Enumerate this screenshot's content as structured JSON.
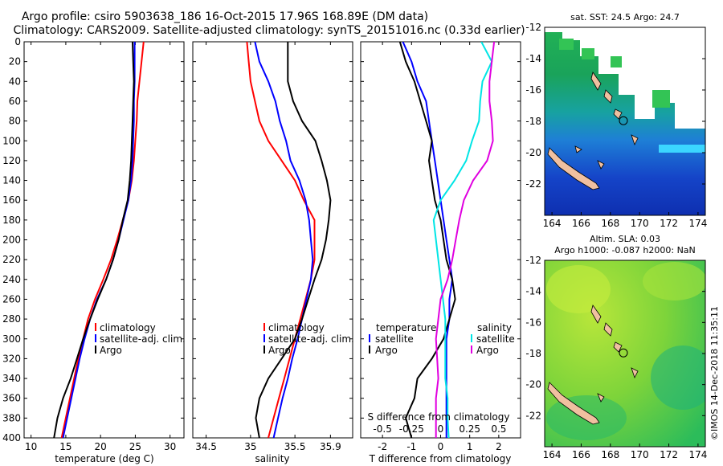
{
  "title": {
    "line1": "Argo profile: csiro 5903638_186 16-Oct-2015 17.96S 168.89E (DM data)",
    "line2": "Climatology: CARS2009. Satellite-adjusted climatology: synTS_20151016.nc (0.33d earlier)"
  },
  "watermark": "©IMOS 14-Dec-2018 11:35:11",
  "colors": {
    "climatology": "#ff0000",
    "satellite": "#0000ff",
    "argo": "#000000",
    "salinity_sat": "#00e5e5",
    "salinity_clim": "#e000e0"
  },
  "chart_data": [
    {
      "id": "temperature",
      "type": "line",
      "xlabel": "temperature (deg C)",
      "ylabel": "",
      "xlim": [
        9,
        32
      ],
      "ylim": [
        400,
        0
      ],
      "x_ticks": [
        "10",
        "15",
        "20",
        "25",
        "30"
      ],
      "y_ticks": [
        "0",
        "20",
        "40",
        "60",
        "80",
        "100",
        "120",
        "140",
        "160",
        "180",
        "200",
        "220",
        "240",
        "260",
        "280",
        "300",
        "320",
        "340",
        "360",
        "380",
        "400"
      ],
      "legend": {
        "position": "lower-right",
        "entries": [
          "climatology",
          "satellite-adj. clim.",
          "Argo"
        ]
      },
      "series": [
        {
          "name": "climatology",
          "color": "#ff0000",
          "points": [
            [
              26.2,
              0
            ],
            [
              25.9,
              20
            ],
            [
              25.6,
              40
            ],
            [
              25.3,
              60
            ],
            [
              25.2,
              80
            ],
            [
              25.0,
              100
            ],
            [
              24.8,
              120
            ],
            [
              24.5,
              140
            ],
            [
              24.0,
              160
            ],
            [
              23.2,
              180
            ],
            [
              22.4,
              200
            ],
            [
              21.5,
              220
            ],
            [
              20.4,
              240
            ],
            [
              19.2,
              260
            ],
            [
              18.2,
              280
            ],
            [
              17.5,
              300
            ],
            [
              16.8,
              320
            ],
            [
              16.2,
              340
            ],
            [
              15.6,
              360
            ],
            [
              15.0,
              380
            ],
            [
              14.4,
              400
            ]
          ]
        },
        {
          "name": "satellite-adj. clim.",
          "color": "#0000ff",
          "points": [
            [
              24.9,
              0
            ],
            [
              24.9,
              20
            ],
            [
              24.9,
              40
            ],
            [
              24.8,
              60
            ],
            [
              24.8,
              80
            ],
            [
              24.7,
              100
            ],
            [
              24.6,
              120
            ],
            [
              24.4,
              140
            ],
            [
              24.0,
              160
            ],
            [
              23.3,
              180
            ],
            [
              22.6,
              200
            ],
            [
              21.8,
              220
            ],
            [
              20.8,
              240
            ],
            [
              19.5,
              260
            ],
            [
              18.5,
              280
            ],
            [
              17.7,
              300
            ],
            [
              17.0,
              320
            ],
            [
              16.4,
              340
            ],
            [
              15.8,
              360
            ],
            [
              15.2,
              380
            ],
            [
              14.6,
              400
            ]
          ]
        },
        {
          "name": "Argo",
          "color": "#000000",
          "points": [
            [
              24.6,
              0
            ],
            [
              24.7,
              20
            ],
            [
              24.8,
              40
            ],
            [
              24.7,
              60
            ],
            [
              24.6,
              80
            ],
            [
              24.5,
              100
            ],
            [
              24.4,
              120
            ],
            [
              24.2,
              140
            ],
            [
              23.9,
              160
            ],
            [
              23.2,
              180
            ],
            [
              22.6,
              200
            ],
            [
              21.8,
              220
            ],
            [
              20.8,
              240
            ],
            [
              19.6,
              260
            ],
            [
              18.5,
              280
            ],
            [
              17.5,
              300
            ],
            [
              16.6,
              320
            ],
            [
              15.7,
              340
            ],
            [
              14.6,
              360
            ],
            [
              13.8,
              380
            ],
            [
              13.3,
              400
            ]
          ]
        }
      ]
    },
    {
      "id": "salinity",
      "type": "line",
      "xlabel": "salinity",
      "ylabel": "",
      "xlim": [
        34.35,
        36.15
      ],
      "ylim": [
        400,
        0
      ],
      "x_ticks": [
        "34.5",
        "35",
        "35.5",
        "35.9"
      ],
      "legend": {
        "position": "lower-right",
        "entries": [
          "climatology",
          "satellite-adj. clim.",
          "Argo"
        ]
      },
      "series": [
        {
          "name": "climatology",
          "color": "#ff0000",
          "points": [
            [
              34.96,
              0
            ],
            [
              34.98,
              20
            ],
            [
              35.0,
              40
            ],
            [
              35.05,
              60
            ],
            [
              35.1,
              80
            ],
            [
              35.2,
              100
            ],
            [
              35.35,
              120
            ],
            [
              35.5,
              140
            ],
            [
              35.6,
              160
            ],
            [
              35.72,
              180
            ],
            [
              35.72,
              200
            ],
            [
              35.72,
              220
            ],
            [
              35.68,
              240
            ],
            [
              35.62,
              260
            ],
            [
              35.56,
              280
            ],
            [
              35.5,
              300
            ],
            [
              35.44,
              320
            ],
            [
              35.38,
              340
            ],
            [
              35.32,
              360
            ],
            [
              35.26,
              380
            ],
            [
              35.2,
              400
            ]
          ]
        },
        {
          "name": "satellite-adj. clim.",
          "color": "#0000ff",
          "points": [
            [
              35.05,
              0
            ],
            [
              35.1,
              20
            ],
            [
              35.2,
              40
            ],
            [
              35.28,
              60
            ],
            [
              35.33,
              80
            ],
            [
              35.4,
              100
            ],
            [
              35.45,
              120
            ],
            [
              35.55,
              140
            ],
            [
              35.62,
              160
            ],
            [
              35.66,
              180
            ],
            [
              35.68,
              200
            ],
            [
              35.7,
              220
            ],
            [
              35.68,
              240
            ],
            [
              35.63,
              260
            ],
            [
              35.58,
              280
            ],
            [
              35.53,
              300
            ],
            [
              35.47,
              320
            ],
            [
              35.42,
              340
            ],
            [
              35.36,
              360
            ],
            [
              35.31,
              380
            ],
            [
              35.26,
              400
            ]
          ]
        },
        {
          "name": "Argo",
          "color": "#000000",
          "points": [
            [
              35.42,
              0
            ],
            [
              35.42,
              20
            ],
            [
              35.42,
              40
            ],
            [
              35.48,
              60
            ],
            [
              35.58,
              80
            ],
            [
              35.73,
              100
            ],
            [
              35.8,
              120
            ],
            [
              35.86,
              140
            ],
            [
              35.9,
              160
            ],
            [
              35.88,
              180
            ],
            [
              35.85,
              200
            ],
            [
              35.8,
              220
            ],
            [
              35.72,
              240
            ],
            [
              35.65,
              260
            ],
            [
              35.58,
              280
            ],
            [
              35.5,
              300
            ],
            [
              35.35,
              320
            ],
            [
              35.2,
              340
            ],
            [
              35.1,
              360
            ],
            [
              35.06,
              380
            ],
            [
              35.1,
              400
            ]
          ]
        }
      ]
    },
    {
      "id": "differences",
      "type": "line",
      "xlabel": "T difference from climatology",
      "xlabel_top": "S difference from climatology",
      "ylabel": "",
      "xlim": [
        -2.75,
        2.75
      ],
      "s_xlim": [
        -0.6875,
        0.6875
      ],
      "ylim": [
        400,
        0
      ],
      "x_ticks": [
        "-2",
        "-1",
        "0",
        "1",
        "2"
      ],
      "s_x_ticks": [
        "-0.5",
        "-0.25",
        "0",
        "0.25",
        "0.5"
      ],
      "legend": {
        "position": "lower",
        "temperature_heading": "temperature",
        "salinity_heading": "salinity",
        "temperature_entries": [
          "satellite",
          "Argo"
        ],
        "salinity_entries": [
          "satellite",
          "Argo"
        ]
      },
      "series": [
        {
          "name": "T satellite",
          "color": "#0000ff",
          "points": [
            [
              -1.3,
              0
            ],
            [
              -1.0,
              20
            ],
            [
              -0.8,
              40
            ],
            [
              -0.5,
              60
            ],
            [
              -0.4,
              80
            ],
            [
              -0.3,
              100
            ],
            [
              -0.2,
              120
            ],
            [
              -0.1,
              140
            ],
            [
              0.0,
              160
            ],
            [
              0.1,
              180
            ],
            [
              0.2,
              200
            ],
            [
              0.3,
              220
            ],
            [
              0.4,
              240
            ],
            [
              0.3,
              260
            ],
            [
              0.3,
              280
            ],
            [
              0.2,
              300
            ],
            [
              0.2,
              320
            ],
            [
              0.2,
              340
            ],
            [
              0.2,
              360
            ],
            [
              0.2,
              380
            ],
            [
              0.2,
              400
            ]
          ]
        },
        {
          "name": "T Argo",
          "color": "#000000",
          "points": [
            [
              -1.4,
              0
            ],
            [
              -1.2,
              20
            ],
            [
              -0.9,
              40
            ],
            [
              -0.7,
              60
            ],
            [
              -0.5,
              80
            ],
            [
              -0.3,
              100
            ],
            [
              -0.4,
              120
            ],
            [
              -0.3,
              140
            ],
            [
              -0.2,
              160
            ],
            [
              0.0,
              180
            ],
            [
              0.1,
              200
            ],
            [
              0.2,
              220
            ],
            [
              0.4,
              240
            ],
            [
              0.5,
              260
            ],
            [
              0.3,
              280
            ],
            [
              0.1,
              300
            ],
            [
              -0.3,
              320
            ],
            [
              -0.8,
              340
            ],
            [
              -0.9,
              360
            ],
            [
              -1.2,
              380
            ],
            [
              -1.0,
              400
            ]
          ]
        },
        {
          "name": "S satellite",
          "color": "#00e5e5",
          "points": [
            [
              0.35,
              0
            ],
            [
              0.44,
              20
            ],
            [
              0.36,
              40
            ],
            [
              0.34,
              60
            ],
            [
              0.33,
              80
            ],
            [
              0.27,
              100
            ],
            [
              0.22,
              120
            ],
            [
              0.12,
              140
            ],
            [
              0.0,
              160
            ],
            [
              -0.06,
              180
            ],
            [
              -0.04,
              200
            ],
            [
              -0.02,
              220
            ],
            [
              0.0,
              240
            ],
            [
              0.02,
              260
            ],
            [
              0.04,
              280
            ],
            [
              0.04,
              300
            ],
            [
              0.04,
              320
            ],
            [
              0.04,
              340
            ],
            [
              0.06,
              360
            ],
            [
              0.06,
              380
            ],
            [
              0.07,
              400
            ]
          ]
        },
        {
          "name": "S Argo",
          "color": "#e000e0",
          "points": [
            [
              0.46,
              0
            ],
            [
              0.44,
              20
            ],
            [
              0.42,
              40
            ],
            [
              0.42,
              60
            ],
            [
              0.44,
              80
            ],
            [
              0.45,
              100
            ],
            [
              0.4,
              120
            ],
            [
              0.28,
              140
            ],
            [
              0.2,
              160
            ],
            [
              0.16,
              180
            ],
            [
              0.13,
              200
            ],
            [
              0.1,
              220
            ],
            [
              0.06,
              240
            ],
            [
              0.0,
              260
            ],
            [
              -0.02,
              280
            ],
            [
              -0.04,
              300
            ],
            [
              -0.03,
              320
            ],
            [
              -0.02,
              340
            ],
            [
              -0.04,
              360
            ],
            [
              -0.04,
              380
            ],
            [
              -0.04,
              400
            ]
          ]
        }
      ]
    },
    {
      "id": "sst_map",
      "type": "heatmap",
      "title": "sat. SST: 24.5 Argo: 24.7",
      "x_ticks": [
        "164",
        "166",
        "168",
        "170",
        "172",
        "174"
      ],
      "y_ticks": [
        "-12",
        "-14",
        "-16",
        "-18",
        "-20",
        "-22"
      ],
      "xlim": [
        163.5,
        174.5
      ],
      "ylim": [
        -24,
        -12
      ],
      "argo_position": [
        168.89,
        -17.96
      ]
    },
    {
      "id": "sla_map",
      "type": "heatmap",
      "title": "Altim. SLA: 0.03",
      "subtitle": "Argo h1000: -0.087 h2000: NaN",
      "x_ticks": [
        "164",
        "166",
        "168",
        "170",
        "172",
        "174"
      ],
      "y_ticks": [
        "-12",
        "-14",
        "-16",
        "-18",
        "-20",
        "-22"
      ],
      "xlim": [
        163.5,
        174.5
      ],
      "ylim": [
        -24,
        -12
      ],
      "argo_position": [
        168.89,
        -17.96
      ]
    }
  ]
}
